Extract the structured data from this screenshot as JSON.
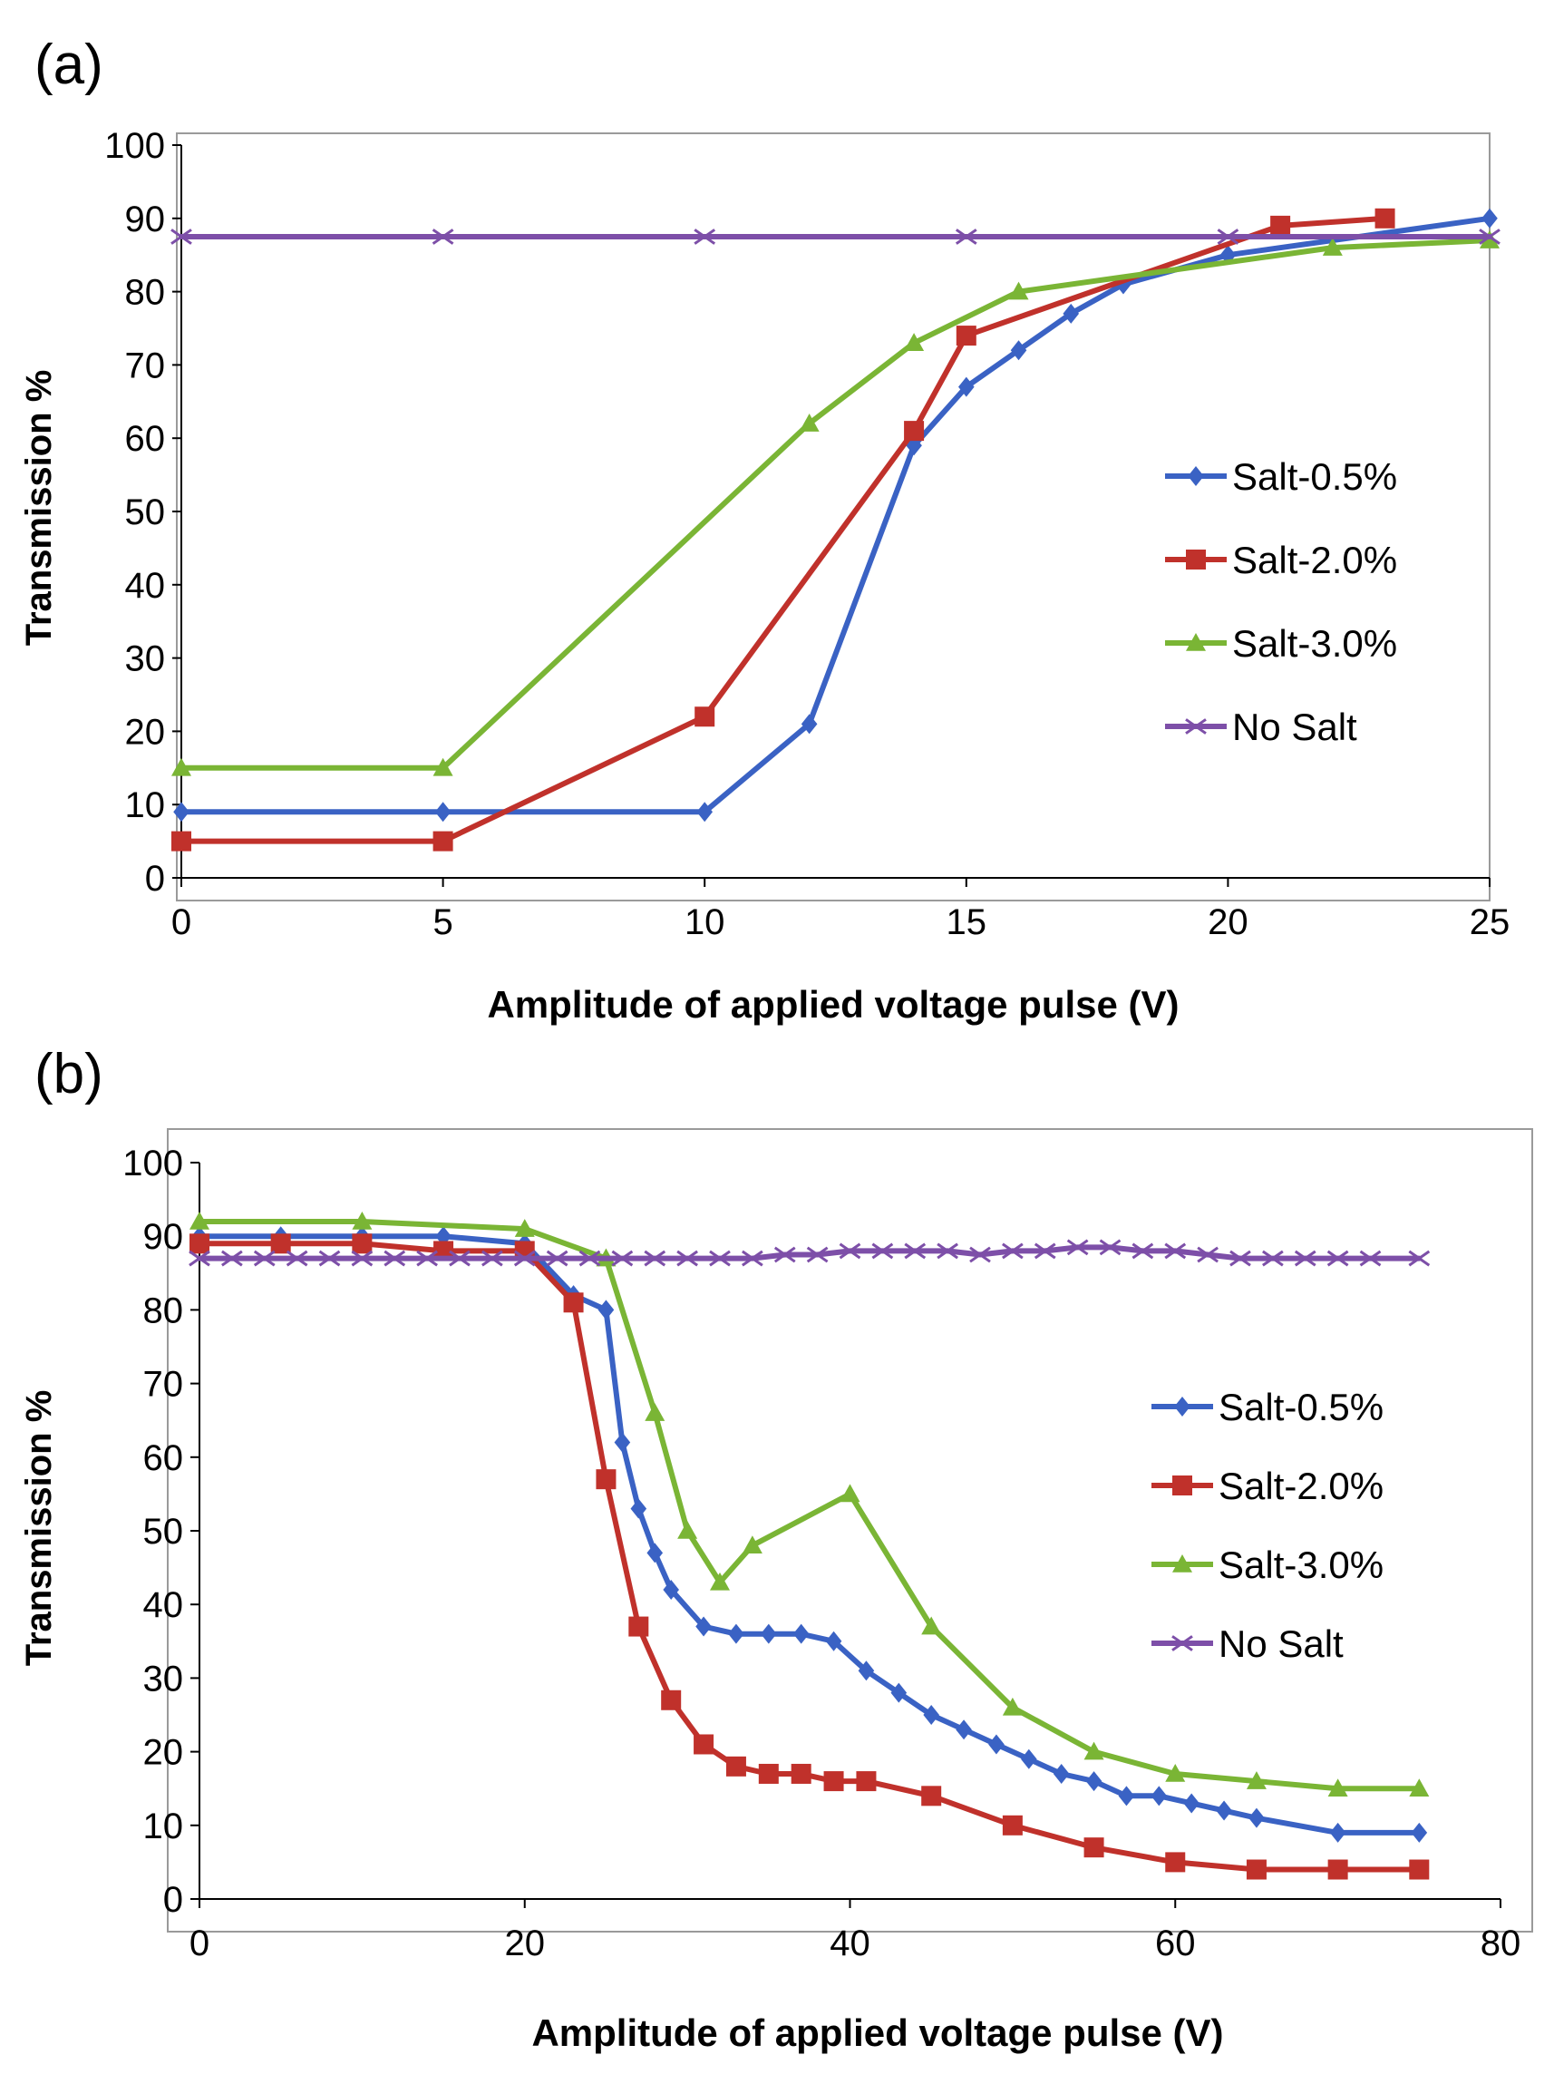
{
  "colors": {
    "salt_05": "#3a62c4",
    "salt_20": "#c0312b",
    "salt_30": "#7ab535",
    "no_salt": "#7d4fa8",
    "axis": "#000000",
    "frame": "#9a9a9a"
  },
  "chart_data": [
    {
      "panel_label": "(a)",
      "type": "line",
      "title": "",
      "xlabel": "Amplitude of applied voltage pulse (V)",
      "ylabel": "Transmission %",
      "xlim": [
        0,
        25
      ],
      "ylim": [
        0,
        100
      ],
      "xticks": [
        0,
        5,
        10,
        15,
        20,
        25
      ],
      "yticks": [
        0,
        10,
        20,
        30,
        40,
        50,
        60,
        70,
        80,
        90,
        100
      ],
      "legend_position": "right",
      "grid": false,
      "series": [
        {
          "name": "Salt-0.5%",
          "marker": "diamond",
          "color_key": "salt_05",
          "x": [
            0,
            5,
            10,
            12,
            14,
            15,
            16,
            17,
            18,
            20,
            25
          ],
          "y": [
            9,
            9,
            9,
            21,
            59,
            67,
            72,
            77,
            81,
            85,
            90
          ]
        },
        {
          "name": "Salt-2.0%",
          "marker": "square",
          "color_key": "salt_20",
          "x": [
            0,
            5,
            10,
            14,
            15,
            21,
            23
          ],
          "y": [
            5,
            5,
            22,
            61,
            74,
            89,
            90
          ]
        },
        {
          "name": "Salt-3.0%",
          "marker": "triangle",
          "color_key": "salt_30",
          "x": [
            0,
            5,
            12,
            14,
            16,
            22,
            25
          ],
          "y": [
            15,
            15,
            62,
            73,
            80,
            86,
            87
          ]
        },
        {
          "name": "No Salt",
          "marker": "x",
          "color_key": "no_salt",
          "x": [
            0,
            5,
            10,
            15,
            20,
            25
          ],
          "y": [
            87.5,
            87.5,
            87.5,
            87.5,
            87.5,
            87.5
          ]
        }
      ]
    },
    {
      "panel_label": "(b)",
      "type": "line",
      "title": "",
      "xlabel": "Amplitude of applied voltage pulse (V)",
      "ylabel": "Transmission %",
      "xlim": [
        0,
        80
      ],
      "ylim": [
        0,
        100
      ],
      "xticks": [
        0,
        20,
        40,
        60,
        80
      ],
      "yticks": [
        0,
        10,
        20,
        30,
        40,
        50,
        60,
        70,
        80,
        90,
        100
      ],
      "legend_position": "right",
      "grid": false,
      "series": [
        {
          "name": "Salt-0.5%",
          "marker": "diamond",
          "color_key": "salt_05",
          "x": [
            0,
            5,
            10,
            15,
            20,
            23,
            25,
            26,
            27,
            28,
            29,
            31,
            33,
            35,
            37,
            39,
            41,
            43,
            45,
            47,
            49,
            51,
            53,
            55,
            57,
            59,
            61,
            63,
            65,
            70,
            75
          ],
          "y": [
            90,
            90,
            90,
            90,
            89,
            82,
            80,
            62,
            53,
            47,
            42,
            37,
            36,
            36,
            36,
            35,
            31,
            28,
            25,
            23,
            21,
            19,
            17,
            16,
            14,
            14,
            13,
            12,
            11,
            9,
            9
          ]
        },
        {
          "name": "Salt-2.0%",
          "marker": "square",
          "color_key": "salt_20",
          "x": [
            0,
            5,
            10,
            15,
            20,
            23,
            25,
            27,
            29,
            31,
            33,
            35,
            37,
            39,
            41,
            45,
            50,
            55,
            60,
            65,
            70,
            75
          ],
          "y": [
            89,
            89,
            89,
            88,
            88,
            81,
            57,
            37,
            27,
            21,
            18,
            17,
            17,
            16,
            16,
            14,
            10,
            7,
            5,
            4,
            4,
            4
          ]
        },
        {
          "name": "Salt-3.0%",
          "marker": "triangle",
          "color_key": "salt_30",
          "x": [
            0,
            10,
            20,
            25,
            28,
            30,
            32,
            34,
            40,
            45,
            50,
            55,
            60,
            65,
            70,
            75
          ],
          "y": [
            92,
            92,
            91,
            87,
            66,
            50,
            43,
            48,
            55,
            37,
            26,
            20,
            17,
            16,
            15,
            15
          ]
        },
        {
          "name": "No Salt",
          "marker": "x",
          "color_key": "no_salt",
          "x": [
            0,
            2,
            4,
            6,
            8,
            10,
            12,
            14,
            16,
            18,
            20,
            22,
            24,
            26,
            28,
            30,
            32,
            34,
            36,
            38,
            40,
            42,
            44,
            46,
            48,
            50,
            52,
            54,
            56,
            58,
            60,
            62,
            64,
            66,
            68,
            70,
            72,
            75
          ],
          "y": [
            87,
            87,
            87,
            87,
            87,
            87,
            87,
            87,
            87,
            87,
            87,
            87,
            87,
            87,
            87,
            87,
            87,
            87,
            87.5,
            87.5,
            88,
            88,
            88,
            88,
            87.5,
            88,
            88,
            88.5,
            88.5,
            88,
            88,
            87.5,
            87,
            87,
            87,
            87,
            87,
            87
          ]
        }
      ]
    }
  ]
}
